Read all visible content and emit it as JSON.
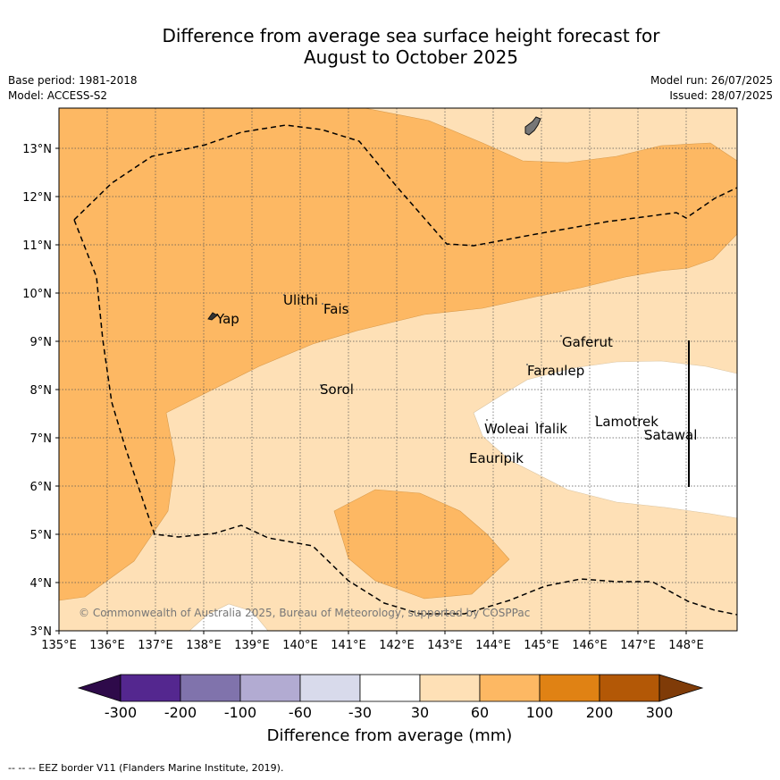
{
  "title_line1": "Difference from average sea surface height forecast for",
  "title_line2": "August to October 2025",
  "meta": {
    "base_period": "Base period: 1981-2018",
    "model": "Model: ACCESS-S2",
    "model_run": "Model run: 26/07/2025",
    "issued": "Issued: 28/07/2025"
  },
  "map": {
    "lon_range": [
      135,
      149
    ],
    "lat_range": [
      3,
      13.8
    ],
    "lat_ticks": [
      "3°N",
      "4°N",
      "5°N",
      "6°N",
      "7°N",
      "8°N",
      "9°N",
      "10°N",
      "11°N",
      "12°N",
      "13°N"
    ],
    "lon_ticks": [
      "135°E",
      "136°E",
      "137°E",
      "138°E",
      "139°E",
      "140°E",
      "141°E",
      "142°E",
      "143°E",
      "144°E",
      "145°E",
      "146°E",
      "147°E",
      "148°E"
    ],
    "places": [
      "Yap",
      "Ulithi",
      "Fais",
      "Sorol",
      "Gaferut",
      "Faraulep",
      "Woleai",
      "Ifalik",
      "Lamotrek",
      "Satawal",
      "Eauripik"
    ],
    "copyright": "© Commonwealth of Australia 2025, Bureau of Meteorology, supported by COSPPac"
  },
  "colorbar": {
    "ticks": [
      "-300",
      "-200",
      "-100",
      "-60",
      "-30",
      "30",
      "60",
      "100",
      "200",
      "300"
    ],
    "colors": [
      "#2e0a4a",
      "#54278f",
      "#8073ac",
      "#b2abd2",
      "#d8daeb",
      "#ffffff",
      "#fee0b6",
      "#fdb863",
      "#e08214",
      "#b35806",
      "#7f3b08"
    ],
    "title": "Difference from average (mm)"
  },
  "footnote": "--  --  -- EEZ border V11 (Flanders Marine Institute, 2019)."
}
